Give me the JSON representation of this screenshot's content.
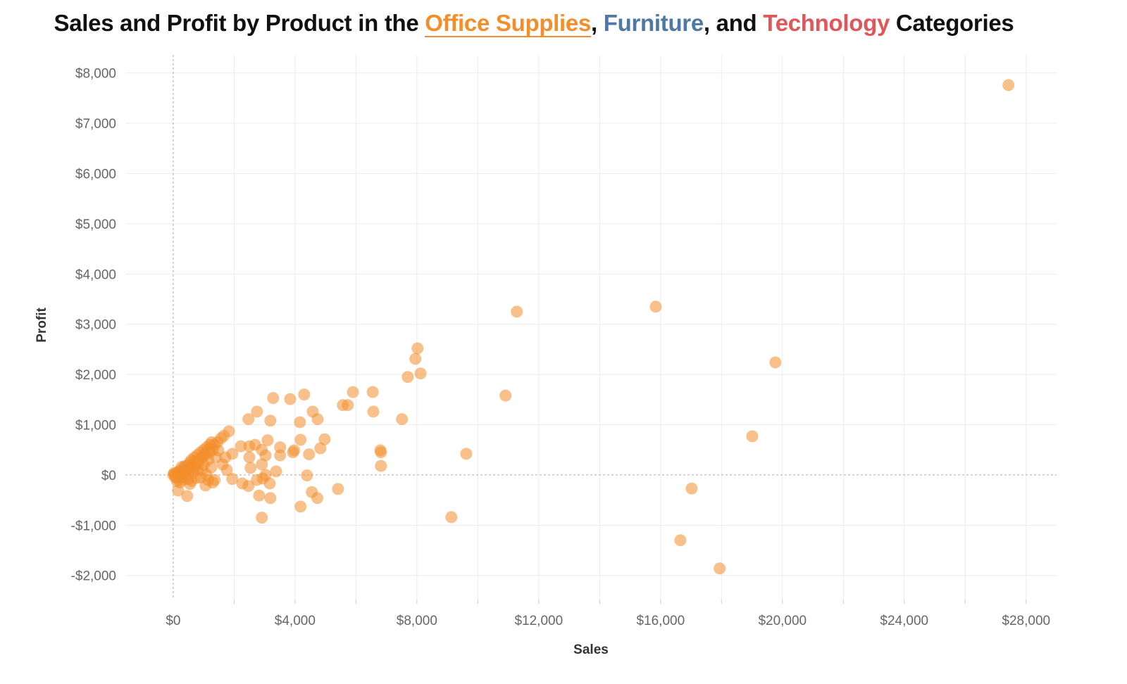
{
  "title": {
    "prefix": "Sales and Profit by Product in the ",
    "cat1": "Office Supplies",
    "sep1": ", ",
    "cat2": "Furniture",
    "sep2": ", and ",
    "cat3": "Technology",
    "suffix": " Categories"
  },
  "colors": {
    "office_supplies": "#f28e2b",
    "furniture": "#4e79a7",
    "technology": "#e15759",
    "title": "#111111"
  },
  "chart_data": {
    "type": "scatter",
    "title": "Sales and Profit by Product in the Office Supplies, Furniture, and Technology Categories",
    "xlabel": "Sales",
    "ylabel": "Profit",
    "xlim": [
      -1570,
      29000
    ],
    "ylim": [
      -2480,
      8360
    ],
    "x_ticks": [
      0,
      4000,
      8000,
      12000,
      16000,
      20000,
      24000,
      28000
    ],
    "x_tick_labels": [
      "$0",
      "$4,000",
      "$8,000",
      "$12,000",
      "$16,000",
      "$20,000",
      "$24,000",
      "$28,000"
    ],
    "y_ticks": [
      -2000,
      -1000,
      0,
      1000,
      2000,
      3000,
      4000,
      5000,
      6000,
      7000,
      8000
    ],
    "y_tick_labels": [
      "-$2,000",
      "-$1,000",
      "$0",
      "$1,000",
      "$2,000",
      "$3,000",
      "$4,000",
      "$5,000",
      "$6,000",
      "$7,000",
      "$8,000"
    ],
    "grid": true,
    "legend": "none",
    "series": [
      {
        "color": "#f28e2b",
        "points": [
          [
            27420,
            7760
          ],
          [
            15840,
            3350
          ],
          [
            11280,
            3250
          ],
          [
            19770,
            2240
          ],
          [
            8020,
            2520
          ],
          [
            7950,
            2310
          ],
          [
            8120,
            2020
          ],
          [
            7700,
            1950
          ],
          [
            10910,
            1580
          ],
          [
            19010,
            770
          ],
          [
            17020,
            -270
          ],
          [
            16650,
            -1300
          ],
          [
            17940,
            -1860
          ],
          [
            9130,
            -840
          ],
          [
            9620,
            420
          ],
          [
            7510,
            1110
          ],
          [
            6570,
            1260
          ],
          [
            6550,
            1650
          ],
          [
            5900,
            1650
          ],
          [
            5570,
            1390
          ],
          [
            5730,
            1390
          ],
          [
            6800,
            490
          ],
          [
            6820,
            450
          ],
          [
            6820,
            180
          ],
          [
            5410,
            -280
          ],
          [
            4300,
            1600
          ],
          [
            3840,
            1510
          ],
          [
            3280,
            1530
          ],
          [
            2750,
            1260
          ],
          [
            2470,
            1110
          ],
          [
            3190,
            1080
          ],
          [
            4160,
            1050
          ],
          [
            4580,
            1260
          ],
          [
            4740,
            1110
          ],
          [
            4180,
            700
          ],
          [
            4970,
            710
          ],
          [
            4830,
            530
          ],
          [
            4460,
            410
          ],
          [
            3930,
            450
          ],
          [
            3970,
            490
          ],
          [
            3510,
            550
          ],
          [
            3510,
            390
          ],
          [
            3100,
            690
          ],
          [
            3030,
            390
          ],
          [
            2220,
            570
          ],
          [
            2500,
            570
          ],
          [
            2690,
            600
          ],
          [
            2910,
            500
          ],
          [
            3380,
            70
          ],
          [
            2500,
            350
          ],
          [
            2910,
            210
          ],
          [
            2540,
            140
          ],
          [
            3030,
            0
          ],
          [
            2940,
            -70
          ],
          [
            4390,
            -10
          ],
          [
            2750,
            -100
          ],
          [
            3170,
            -170
          ],
          [
            2270,
            -170
          ],
          [
            2470,
            -220
          ],
          [
            4550,
            -340
          ],
          [
            4730,
            -460
          ],
          [
            3190,
            -460
          ],
          [
            2820,
            -410
          ],
          [
            4180,
            -630
          ],
          [
            2910,
            -850
          ],
          [
            1940,
            -80
          ],
          [
            1760,
            100
          ],
          [
            1620,
            210
          ],
          [
            1940,
            420
          ],
          [
            1830,
            870
          ],
          [
            1660,
            780
          ],
          [
            1570,
            730
          ],
          [
            460,
            -420
          ],
          [
            160,
            -310
          ],
          [
            1060,
            -210
          ],
          [
            550,
            -180
          ],
          [
            1360,
            -100
          ],
          [
            1710,
            350
          ],
          [
            1480,
            490
          ],
          [
            0,
            0
          ],
          [
            50,
            10
          ],
          [
            80,
            -20
          ],
          [
            100,
            30
          ],
          [
            150,
            50
          ],
          [
            200,
            20
          ],
          [
            200,
            80
          ],
          [
            250,
            -50
          ],
          [
            300,
            100
          ],
          [
            300,
            40
          ],
          [
            350,
            150
          ],
          [
            400,
            60
          ],
          [
            400,
            180
          ],
          [
            450,
            120
          ],
          [
            500,
            200
          ],
          [
            500,
            -80
          ],
          [
            550,
            250
          ],
          [
            600,
            150
          ],
          [
            600,
            300
          ],
          [
            650,
            50
          ],
          [
            700,
            280
          ],
          [
            700,
            350
          ],
          [
            750,
            200
          ],
          [
            800,
            400
          ],
          [
            800,
            100
          ],
          [
            850,
            300
          ],
          [
            900,
            450
          ],
          [
            900,
            -50
          ],
          [
            950,
            350
          ],
          [
            1000,
            500
          ],
          [
            1000,
            200
          ],
          [
            1050,
            420
          ],
          [
            1100,
            550
          ],
          [
            1100,
            0
          ],
          [
            1150,
            300
          ],
          [
            1200,
            600
          ],
          [
            1200,
            450
          ],
          [
            1250,
            150
          ],
          [
            1300,
            500
          ],
          [
            1300,
            -150
          ],
          [
            1350,
            600
          ],
          [
            1400,
            350
          ],
          [
            1450,
            650
          ],
          [
            120,
            -120
          ],
          [
            220,
            -150
          ],
          [
            330,
            -100
          ],
          [
            600,
            -120
          ],
          [
            750,
            -60
          ],
          [
            950,
            100
          ],
          [
            1150,
            -100
          ],
          [
            30,
            40
          ],
          [
            60,
            -40
          ],
          [
            180,
            -80
          ],
          [
            280,
            160
          ],
          [
            380,
            -30
          ],
          [
            480,
            30
          ],
          [
            520,
            120
          ],
          [
            680,
            150
          ],
          [
            820,
            250
          ],
          [
            1020,
            380
          ],
          [
            1180,
            520
          ],
          [
            1260,
            650
          ]
        ]
      }
    ]
  }
}
